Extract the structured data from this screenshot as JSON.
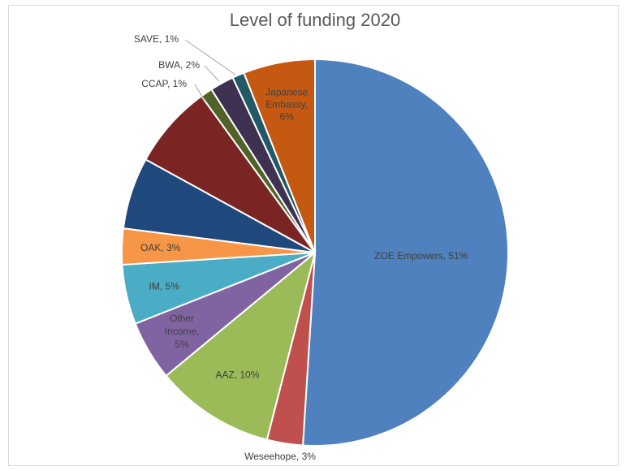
{
  "chart_data": {
    "type": "pie",
    "title": "Level of funding 2020",
    "slices": [
      {
        "label": "ZOE Empowers",
        "value": 51,
        "display": "ZOE Empowers, 51%",
        "color": "#4e81bd"
      },
      {
        "label": "Weseehope",
        "value": 3,
        "display": "Weseehope, 3%",
        "color": "#c0504d"
      },
      {
        "label": "AAZ",
        "value": 10,
        "display": "AAZ, 10%",
        "color": "#9bbb59"
      },
      {
        "label": "Other Income",
        "value": 5,
        "display": "Other Income, 5%",
        "color": "#8064a2"
      },
      {
        "label": "IM",
        "value": 5,
        "display": "IM, 5%",
        "color": "#4bacc6"
      },
      {
        "label": "OAK",
        "value": 3,
        "display": "OAK, 3%",
        "color": "#f79646"
      },
      {
        "label": "",
        "value": 6,
        "display": "",
        "color": "#1f497d"
      },
      {
        "label": "",
        "value": 7,
        "display": "",
        "color": "#7a2524"
      },
      {
        "label": "CCAP",
        "value": 1,
        "display": "CCAP, 1%",
        "color": "#4f6228"
      },
      {
        "label": "BWA",
        "value": 2,
        "display": "BWA, 2%",
        "color": "#3f3151"
      },
      {
        "label": "SAVE",
        "value": 1,
        "display": "SAVE, 1%",
        "color": "#215967"
      },
      {
        "label": "Japanese Embassy",
        "value": 6,
        "display": "Japanese Embassy, 6%",
        "color": "#c65911"
      }
    ]
  }
}
